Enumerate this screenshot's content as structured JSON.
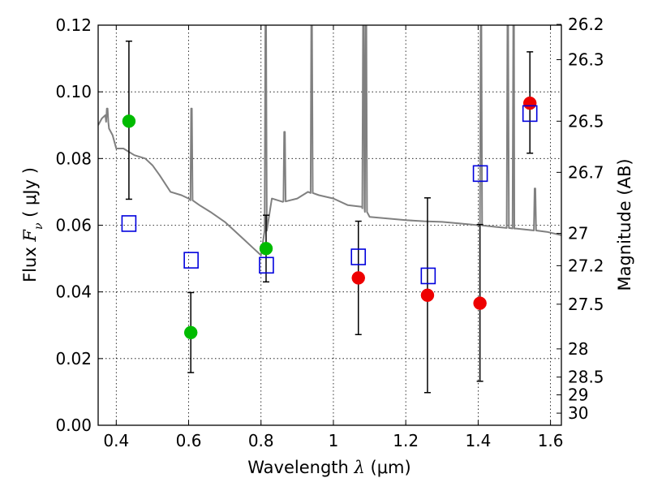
{
  "chart_data": {
    "type": "scatter",
    "xlabel": {
      "prefix": "Wavelength  ",
      "symbol": "λ",
      "unit": " (μm)"
    },
    "ylabel": {
      "prefix": "Flux  ",
      "symbol": "F",
      "sub": "ν",
      "unit": "  ( μJy )"
    },
    "y2label": "Magnitude (AB)",
    "xlim": [
      0.35,
      1.63
    ],
    "ylim": [
      0.0,
      0.12
    ],
    "grid": true,
    "x_ticks": [
      {
        "v": 0.4,
        "label": "0.4"
      },
      {
        "v": 0.6,
        "label": "0.6"
      },
      {
        "v": 0.8,
        "label": "0.8"
      },
      {
        "v": 1.0,
        "label": "1"
      },
      {
        "v": 1.2,
        "label": "1.2"
      },
      {
        "v": 1.4,
        "label": "1.4"
      },
      {
        "v": 1.6,
        "label": "1.6"
      }
    ],
    "y_ticks": [
      {
        "v": 0.0,
        "label": "0.00"
      },
      {
        "v": 0.02,
        "label": "0.02"
      },
      {
        "v": 0.04,
        "label": "0.04"
      },
      {
        "v": 0.06,
        "label": "0.06"
      },
      {
        "v": 0.08,
        "label": "0.08"
      },
      {
        "v": 0.1,
        "label": "0.10"
      },
      {
        "v": 0.12,
        "label": "0.12"
      }
    ],
    "y2_ticks": [
      {
        "mag": 26.2,
        "label": "26.2"
      },
      {
        "mag": 26.3,
        "label": "26.3"
      },
      {
        "mag": 26.5,
        "label": "26.5"
      },
      {
        "mag": 26.7,
        "label": "26.7"
      },
      {
        "mag": 27,
        "label": "27"
      },
      {
        "mag": 27.2,
        "label": "27.2"
      },
      {
        "mag": 27.5,
        "label": "27.5"
      },
      {
        "mag": 28,
        "label": "28"
      },
      {
        "mag": 28.5,
        "label": "28.5"
      },
      {
        "mag": 29,
        "label": "29"
      },
      {
        "mag": 30,
        "label": "30"
      }
    ],
    "colors": {
      "model": "#808080",
      "green": "#00bb00",
      "red": "#ee0000",
      "box": "#0000dd",
      "errorbar": "#000000",
      "grid": "#000000"
    },
    "model_spectrum": {
      "continuum": [
        [
          0.35,
          0.09
        ],
        [
          0.36,
          0.092
        ],
        [
          0.37,
          0.093
        ],
        [
          0.38,
          0.089
        ],
        [
          0.39,
          0.087
        ],
        [
          0.4,
          0.083
        ],
        [
          0.42,
          0.083
        ],
        [
          0.45,
          0.081
        ],
        [
          0.48,
          0.08
        ],
        [
          0.5,
          0.078
        ],
        [
          0.52,
          0.075
        ],
        [
          0.55,
          0.07
        ],
        [
          0.58,
          0.069
        ],
        [
          0.6,
          0.068
        ],
        [
          0.63,
          0.066
        ],
        [
          0.66,
          0.064
        ],
        [
          0.7,
          0.061
        ],
        [
          0.72,
          0.059
        ],
        [
          0.75,
          0.056
        ],
        [
          0.78,
          0.053
        ],
        [
          0.8,
          0.051
        ],
        [
          0.83,
          0.068
        ],
        [
          0.86,
          0.067
        ],
        [
          0.9,
          0.068
        ],
        [
          0.93,
          0.07
        ],
        [
          0.96,
          0.069
        ],
        [
          1.0,
          0.068
        ],
        [
          1.04,
          0.066
        ],
        [
          1.08,
          0.0655
        ],
        [
          1.1,
          0.0625
        ],
        [
          1.15,
          0.062
        ],
        [
          1.2,
          0.0615
        ],
        [
          1.25,
          0.0612
        ],
        [
          1.3,
          0.061
        ],
        [
          1.35,
          0.0605
        ],
        [
          1.4,
          0.06
        ],
        [
          1.45,
          0.0595
        ],
        [
          1.5,
          0.059
        ],
        [
          1.55,
          0.0585
        ],
        [
          1.59,
          0.058
        ],
        [
          1.63,
          0.057
        ]
      ],
      "emission_lines": [
        {
          "x": 0.375,
          "peak": 0.095
        },
        {
          "x": 0.608,
          "peak": 0.095
        },
        {
          "x": 0.813,
          "peak": 0.12
        },
        {
          "x": 0.865,
          "peak": 0.088
        },
        {
          "x": 0.94,
          "peak": 0.12
        },
        {
          "x": 1.083,
          "peak": 0.12
        },
        {
          "x": 1.09,
          "peak": 0.12
        },
        {
          "x": 1.408,
          "peak": 0.12
        },
        {
          "x": 1.482,
          "peak": 0.12
        },
        {
          "x": 1.498,
          "peak": 0.12
        },
        {
          "x": 1.557,
          "peak": 0.071
        }
      ]
    },
    "series": [
      {
        "marker": "circle",
        "color": "green",
        "points": [
          {
            "x": 0.435,
            "y": 0.0912,
            "yerr_low": 0.0678,
            "yerr_high": 0.1152
          },
          {
            "x": 0.606,
            "y": 0.0278,
            "yerr_low": 0.0158,
            "yerr_high": 0.0398
          },
          {
            "x": 0.814,
            "y": 0.053,
            "yerr_low": 0.043,
            "yerr_high": 0.063
          }
        ]
      },
      {
        "marker": "circle",
        "color": "red",
        "points": [
          {
            "x": 1.069,
            "y": 0.0442,
            "yerr_low": 0.0272,
            "yerr_high": 0.0612
          },
          {
            "x": 1.26,
            "y": 0.039,
            "yerr_low": 0.0098,
            "yerr_high": 0.0682
          },
          {
            "x": 1.405,
            "y": 0.0366,
            "yerr_low": 0.0132,
            "yerr_high": 0.0602
          },
          {
            "x": 1.543,
            "y": 0.0966,
            "yerr_low": 0.0816,
            "yerr_high": 0.112
          }
        ]
      },
      {
        "marker": "square",
        "color": "box",
        "points": [
          {
            "x": 0.435,
            "y": 0.0605
          },
          {
            "x": 0.607,
            "y": 0.0495
          },
          {
            "x": 0.815,
            "y": 0.048
          },
          {
            "x": 1.069,
            "y": 0.0505
          },
          {
            "x": 1.262,
            "y": 0.0448
          },
          {
            "x": 1.406,
            "y": 0.0755
          },
          {
            "x": 1.543,
            "y": 0.0935
          }
        ]
      }
    ]
  }
}
